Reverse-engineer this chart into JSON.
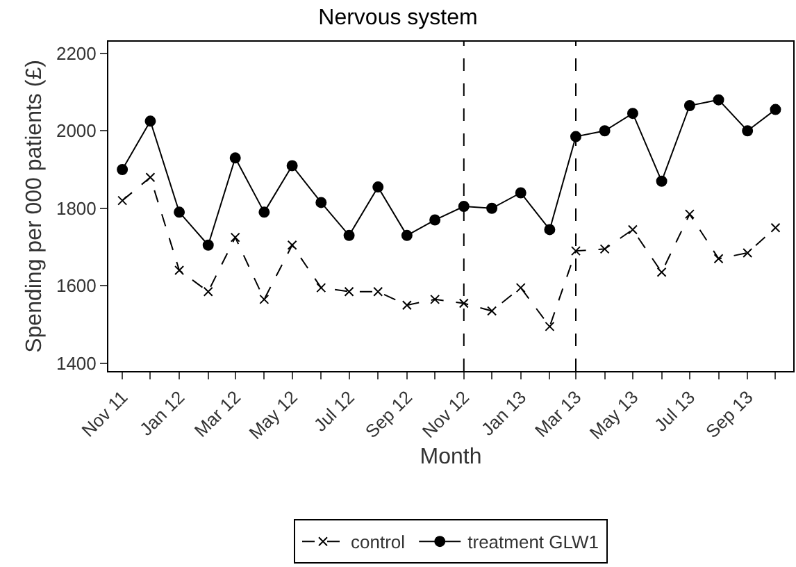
{
  "chart_data": {
    "type": "line",
    "title": "Nervous system",
    "xlabel": "Month",
    "ylabel": "Spending per 000 patients (£)",
    "x": [
      "2011-11",
      "2011-12",
      "2012-01",
      "2012-02",
      "2012-03",
      "2012-04",
      "2012-05",
      "2012-06",
      "2012-07",
      "2012-08",
      "2012-09",
      "2012-10",
      "2012-11",
      "2012-12",
      "2013-01",
      "2013-02",
      "2013-03",
      "2013-04",
      "2013-05",
      "2013-06",
      "2013-07",
      "2013-08",
      "2013-09",
      "2013-10"
    ],
    "series": [
      {
        "name": "control",
        "color": "#000000",
        "line_style": "dashed",
        "marker": "cross",
        "values": [
          1820,
          1880,
          1640,
          1585,
          1725,
          1565,
          1705,
          1595,
          1585,
          1585,
          1550,
          1565,
          1555,
          1535,
          1595,
          1495,
          1690,
          1695,
          1745,
          1635,
          1785,
          1670,
          1685,
          1750
        ]
      },
      {
        "name": "treatment GLW1",
        "color": "#000000",
        "line_style": "solid",
        "marker": "circle",
        "values": [
          1900,
          2025,
          1790,
          1705,
          1930,
          1790,
          1910,
          1815,
          1730,
          1855,
          1730,
          1770,
          1805,
          1800,
          1840,
          1745,
          1985,
          2000,
          2045,
          1870,
          2065,
          2080,
          2000,
          2055
        ]
      }
    ],
    "xlim": [
      "2011-10-17",
      "2013-10-20"
    ],
    "xticks": [
      {
        "value": "2011-11",
        "label": "Nov 11"
      },
      {
        "value": "2011-12",
        "label": null
      },
      {
        "value": "2012-01",
        "label": "Jan 12"
      },
      {
        "value": "2012-02",
        "label": null
      },
      {
        "value": "2012-03",
        "label": "Mar 12"
      },
      {
        "value": "2012-04",
        "label": null
      },
      {
        "value": "2012-05",
        "label": "May 12"
      },
      {
        "value": "2012-06",
        "label": null
      },
      {
        "value": "2012-07",
        "label": "Jul 12"
      },
      {
        "value": "2012-08",
        "label": null
      },
      {
        "value": "2012-09",
        "label": "Sep 12"
      },
      {
        "value": "2012-10",
        "label": null
      },
      {
        "value": "2012-11",
        "label": "Nov 12"
      },
      {
        "value": "2012-12",
        "label": null
      },
      {
        "value": "2013-01",
        "label": "Jan 13"
      },
      {
        "value": "2013-02",
        "label": null
      },
      {
        "value": "2013-03",
        "label": "Mar 13"
      },
      {
        "value": "2013-04",
        "label": null
      },
      {
        "value": "2013-05",
        "label": "May 13"
      },
      {
        "value": "2013-06",
        "label": null
      },
      {
        "value": "2013-07",
        "label": "Jul 13"
      },
      {
        "value": "2013-08",
        "label": null
      },
      {
        "value": "2013-09",
        "label": "Sep 13"
      },
      {
        "value": "2013-10",
        "label": null
      }
    ],
    "ylim": [
      1380,
      2230
    ],
    "yticks": [
      1400,
      1600,
      1800,
      2000,
      2200
    ],
    "ref_lines": [
      {
        "axis": "x",
        "value": "2012-11",
        "line_style": "dashed",
        "color": "#000000"
      },
      {
        "axis": "x",
        "value": "2013-03",
        "line_style": "dashed",
        "color": "#000000"
      }
    ],
    "grid": false,
    "legend": "bottom"
  }
}
